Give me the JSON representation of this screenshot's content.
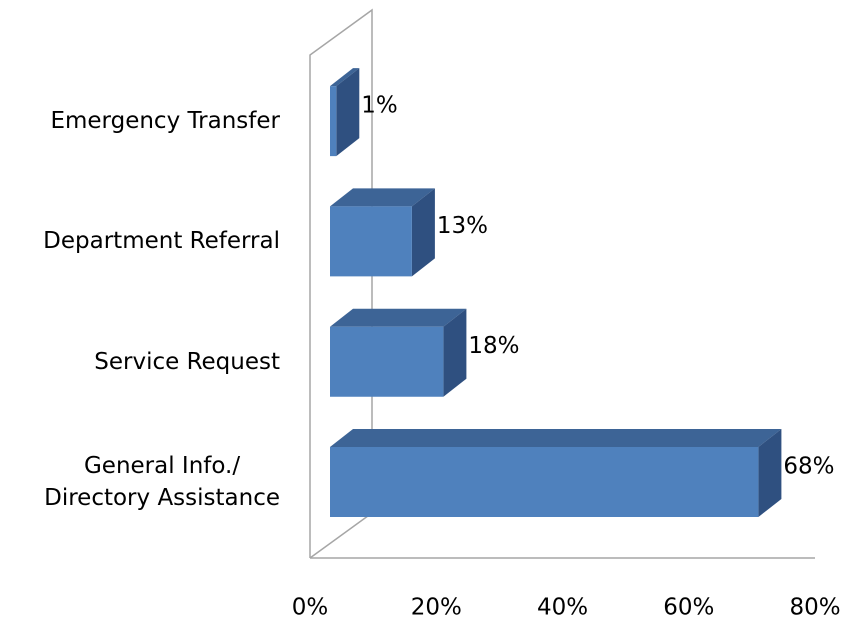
{
  "chart_data": {
    "type": "bar3d_horizontal",
    "categories": [
      "General Info./\nDirectory Assistance",
      "Service Request",
      "Department Referral",
      "Emergency Transfer"
    ],
    "values": [
      68,
      18,
      13,
      1
    ],
    "value_labels": [
      "68%",
      "18%",
      "13%",
      "1%"
    ],
    "color": "#4f81bd",
    "xlim": [
      0,
      80
    ],
    "xticks": [
      {
        "value": 0,
        "label": "0%"
      },
      {
        "value": 20,
        "label": "20%"
      },
      {
        "value": 40,
        "label": "40%"
      },
      {
        "value": 60,
        "label": "60%"
      },
      {
        "value": 80,
        "label": "80%"
      }
    ]
  }
}
